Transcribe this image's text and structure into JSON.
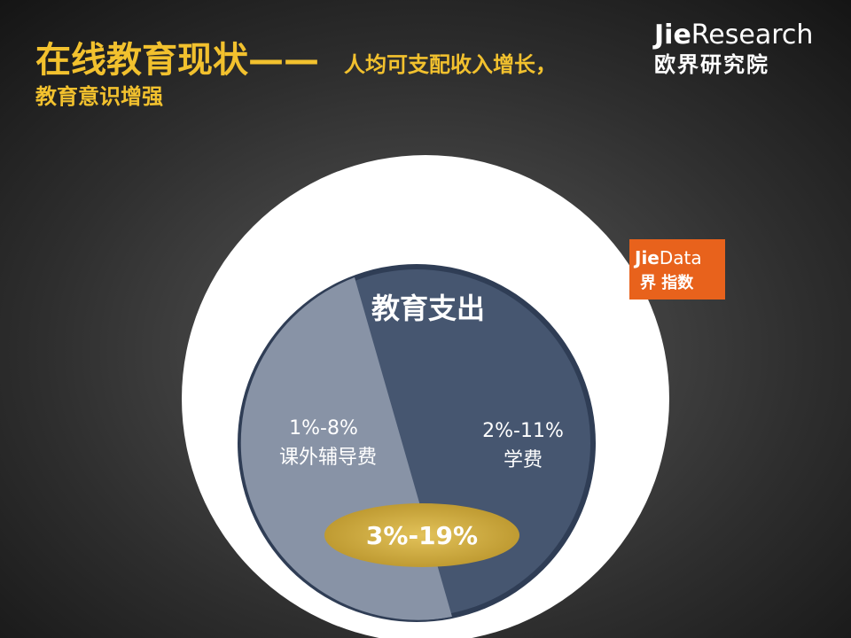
{
  "header": {
    "title_main": "在线教育现状——",
    "title_sub": "人均可支配收入增长，",
    "title_line2": "教育意识增强"
  },
  "logo": {
    "brand_prefix": "Jie",
    "brand_suffix": "Research",
    "brand_cn": "欧界研究院"
  },
  "badge": {
    "prefix": "Jie",
    "suffix": "Data",
    "cn": "界 指数"
  },
  "diagram": {
    "title": "教育支出",
    "segments": [
      {
        "range": "1%-8%",
        "label": "课外辅导费"
      },
      {
        "range": "2%-11%",
        "label": "学费"
      }
    ],
    "total": "3%-19%"
  }
}
